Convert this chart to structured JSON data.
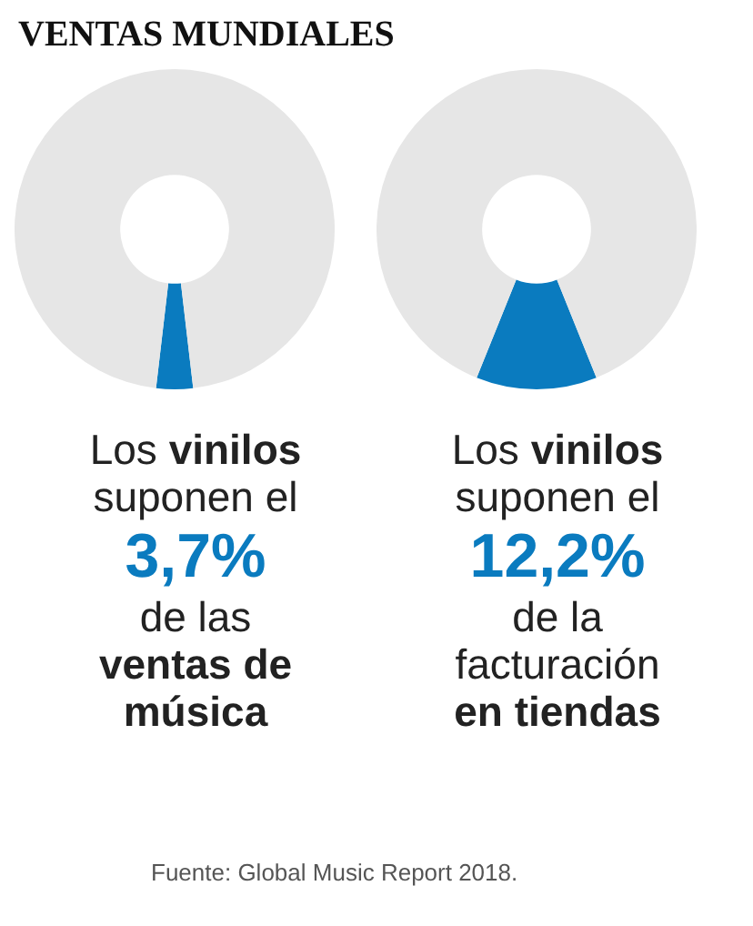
{
  "chart_data": [
    {
      "type": "donut",
      "title": "VENTAS MUNDIALES",
      "categories": [
        null,
        null
      ],
      "values": [
        3.7,
        96.3
      ],
      "colors": [
        "#0a7bbf",
        "#e6e6e6"
      ],
      "annotations": [
        "Los vinilos suponen el",
        "3,7%",
        "de las",
        "ventas de música"
      ]
    },
    {
      "type": "donut",
      "categories": [
        null,
        null
      ],
      "values": [
        12.2,
        87.8
      ],
      "colors": [
        "#0a7bbf",
        "#e6e6e6"
      ],
      "annotations": [
        "Los vinilos suponen el",
        "12,2%",
        "de la facturación",
        "en tiendas",
        "Fuente: Global Music Report 2018."
      ]
    }
  ]
}
